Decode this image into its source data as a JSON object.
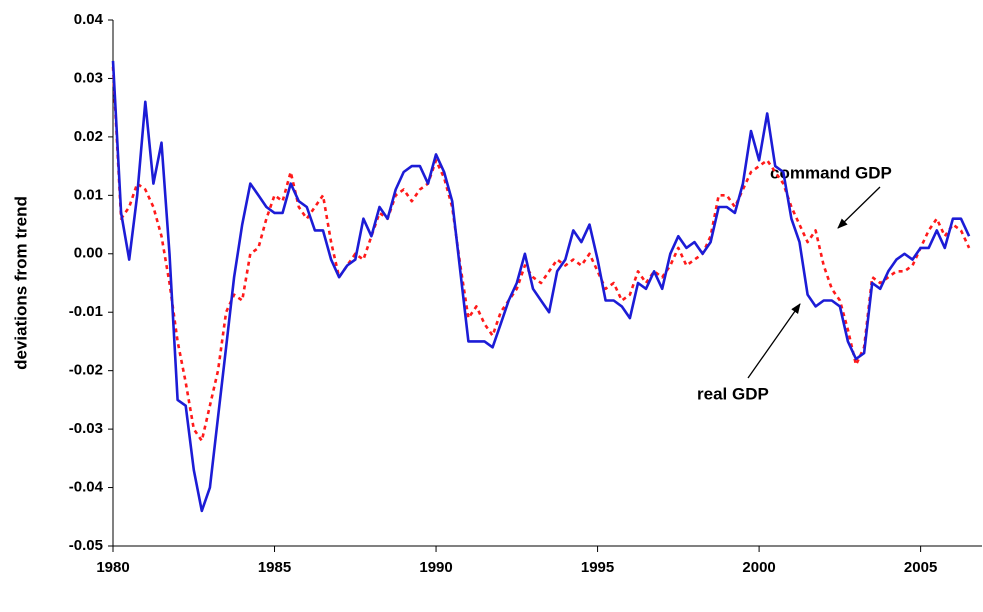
{
  "chart_data": {
    "type": "line",
    "y_label": "deviations from trend",
    "x": [
      1980,
      1980.25,
      1980.5,
      1980.75,
      1981,
      1981.25,
      1981.5,
      1981.75,
      1982,
      1982.25,
      1982.5,
      1982.75,
      1983,
      1983.25,
      1983.5,
      1983.75,
      1984,
      1984.25,
      1984.5,
      1984.75,
      1985,
      1985.25,
      1985.5,
      1985.75,
      1986,
      1986.25,
      1986.5,
      1986.75,
      1987,
      1987.25,
      1987.5,
      1987.75,
      1988,
      1988.25,
      1988.5,
      1988.75,
      1989,
      1989.25,
      1989.5,
      1989.75,
      1990,
      1990.25,
      1990.5,
      1990.75,
      1991,
      1991.25,
      1991.5,
      1991.75,
      1992,
      1992.25,
      1992.5,
      1992.75,
      1993,
      1993.25,
      1993.5,
      1993.75,
      1994,
      1994.25,
      1994.5,
      1994.75,
      1995,
      1995.25,
      1995.5,
      1995.75,
      1996,
      1996.25,
      1996.5,
      1996.75,
      1997,
      1997.25,
      1997.5,
      1997.75,
      1998,
      1998.25,
      1998.5,
      1998.75,
      1999,
      1999.25,
      1999.5,
      1999.75,
      2000,
      2000.25,
      2000.5,
      2000.75,
      2001,
      2001.25,
      2001.5,
      2001.75,
      2002,
      2002.25,
      2002.5,
      2002.75,
      2003,
      2003.25,
      2003.5,
      2003.75,
      2004,
      2004.25,
      2004.5,
      2004.75,
      2005,
      2005.25,
      2005.5,
      2005.75,
      2006,
      2006.25,
      2006.5
    ],
    "series": [
      {
        "name": "real GDP",
        "color": "#1c1cd6",
        "dashed": false,
        "values": [
          0.033,
          0.007,
          -0.001,
          0.01,
          0.026,
          0.012,
          0.019,
          0.0,
          -0.025,
          -0.026,
          -0.037,
          -0.044,
          -0.04,
          -0.028,
          -0.016,
          -0.004,
          0.005,
          0.012,
          0.01,
          0.008,
          0.007,
          0.007,
          0.012,
          0.009,
          0.008,
          0.004,
          0.004,
          -0.001,
          -0.004,
          -0.002,
          -0.001,
          0.006,
          0.003,
          0.008,
          0.006,
          0.011,
          0.014,
          0.015,
          0.015,
          0.012,
          0.017,
          0.014,
          0.009,
          -0.003,
          -0.015,
          -0.015,
          -0.015,
          -0.016,
          -0.012,
          -0.008,
          -0.005,
          0.0,
          -0.006,
          -0.008,
          -0.01,
          -0.003,
          -0.001,
          0.004,
          0.002,
          0.005,
          -0.001,
          -0.008,
          -0.008,
          -0.009,
          -0.011,
          -0.005,
          -0.006,
          -0.003,
          -0.006,
          0.0,
          0.003,
          0.001,
          0.002,
          0.0,
          0.002,
          0.008,
          0.008,
          0.007,
          0.012,
          0.021,
          0.016,
          0.024,
          0.015,
          0.014,
          0.006,
          0.002,
          -0.007,
          -0.009,
          -0.008,
          -0.008,
          -0.009,
          -0.015,
          -0.018,
          -0.017,
          -0.005,
          -0.006,
          -0.003,
          -0.001,
          0.0,
          -0.001,
          0.001,
          0.001,
          0.004,
          0.001,
          0.006,
          0.006,
          0.003
        ]
      },
      {
        "name": "command GDP",
        "color": "#ff1a1a",
        "dashed": true,
        "values": [
          0.032,
          0.006,
          0.008,
          0.012,
          0.011,
          0.008,
          0.003,
          -0.005,
          -0.015,
          -0.022,
          -0.03,
          -0.032,
          -0.026,
          -0.02,
          -0.01,
          -0.007,
          -0.008,
          0.0,
          0.001,
          0.006,
          0.01,
          0.009,
          0.014,
          0.008,
          0.006,
          0.008,
          0.01,
          0.002,
          -0.004,
          -0.002,
          0.0,
          -0.001,
          0.003,
          0.007,
          0.006,
          0.01,
          0.011,
          0.009,
          0.011,
          0.012,
          0.016,
          0.013,
          0.008,
          -0.002,
          -0.011,
          -0.009,
          -0.012,
          -0.014,
          -0.01,
          -0.008,
          -0.006,
          -0.002,
          -0.004,
          -0.005,
          -0.003,
          -0.001,
          -0.002,
          -0.001,
          -0.002,
          0.0,
          -0.003,
          -0.006,
          -0.005,
          -0.008,
          -0.007,
          -0.003,
          -0.005,
          -0.003,
          -0.004,
          -0.002,
          0.001,
          -0.002,
          -0.001,
          0.0,
          0.003,
          0.01,
          0.01,
          0.008,
          0.011,
          0.014,
          0.015,
          0.016,
          0.014,
          0.012,
          0.008,
          0.005,
          0.002,
          0.004,
          -0.002,
          -0.006,
          -0.008,
          -0.013,
          -0.019,
          -0.016,
          -0.004,
          -0.005,
          -0.004,
          -0.003,
          -0.003,
          -0.002,
          0.001,
          0.004,
          0.006,
          0.003,
          0.005,
          0.004,
          0.001
        ]
      }
    ],
    "xlim": [
      1980,
      2006.9
    ],
    "xticks": [
      1980,
      1985,
      1990,
      1995,
      2000,
      2005
    ],
    "ylim": [
      -0.05,
      0.04
    ],
    "yticks": [
      -0.05,
      -0.04,
      -0.03,
      -0.02,
      -0.01,
      {
        "value": 0,
        "label": "0.00"
      },
      0.01,
      0.02,
      0.03,
      0.04
    ],
    "grid": false
  }
}
